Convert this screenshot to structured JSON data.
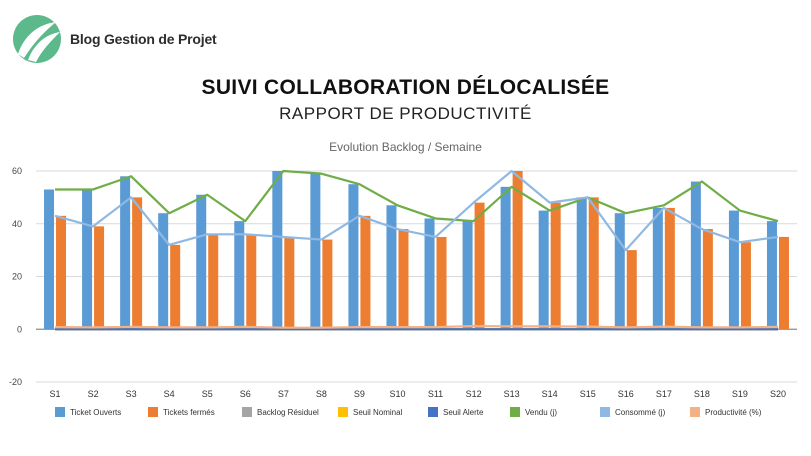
{
  "brand": {
    "name": "Blog Gestion de Projet",
    "color": "#5cb98c"
  },
  "header": {
    "title": "SUIVI COLLABORATION DÉLOCALISÉE",
    "subtitle": "RAPPORT DE PRODUCTIVITÉ"
  },
  "chart_data": {
    "type": "bar",
    "title": "Evolution Backlog / Semaine",
    "categories": [
      "S1",
      "S2",
      "S3",
      "S4",
      "S5",
      "S6",
      "S7",
      "S8",
      "S9",
      "S10",
      "S11",
      "S12",
      "S13",
      "S14",
      "S15",
      "S16",
      "S17",
      "S18",
      "S19",
      "S20"
    ],
    "ylim": [
      -20,
      60
    ],
    "yticks": [
      -20,
      0,
      20,
      40,
      60
    ],
    "grid": true,
    "legend_position": "bottom",
    "series": [
      {
        "name": "Ticket Ouverts",
        "kind": "bar",
        "color": "#5b9bd5",
        "values": [
          53,
          53,
          58,
          44,
          51,
          41,
          60,
          59,
          55,
          47,
          42,
          41,
          54,
          45,
          50,
          44,
          46,
          56,
          45,
          41
        ]
      },
      {
        "name": "Tickets fermés",
        "kind": "bar",
        "color": "#ed7d31",
        "values": [
          43,
          39,
          50,
          32,
          36,
          36,
          35,
          34,
          43,
          38,
          35,
          48,
          60,
          48,
          50,
          30,
          46,
          38,
          33,
          35
        ]
      },
      {
        "name": "Backlog Résiduel",
        "kind": "line",
        "color": "#a5a5a5",
        "values": [
          0,
          0,
          0,
          0,
          0,
          0,
          0,
          0,
          0,
          0,
          0,
          0,
          0,
          0,
          0,
          0,
          0,
          0,
          0,
          0
        ]
      },
      {
        "name": "Seuil Nominal",
        "kind": "line",
        "color": "#ffc000",
        "values": [
          0,
          0,
          0,
          0,
          0,
          0,
          0,
          0,
          0,
          0,
          0,
          0,
          0,
          0,
          0,
          0,
          0,
          0,
          0,
          0
        ]
      },
      {
        "name": "Seuil Alerte",
        "kind": "line",
        "color": "#4472c4",
        "values": [
          0,
          0,
          0,
          0,
          0,
          0,
          0,
          0,
          0,
          0,
          0,
          0,
          0,
          0,
          0,
          0,
          0,
          0,
          0,
          0
        ]
      },
      {
        "name": "Vendu (j)",
        "kind": "line",
        "color": "#70ad47",
        "values": [
          53,
          53,
          58,
          44,
          51,
          41,
          60,
          59,
          55,
          47,
          42,
          41,
          54,
          45,
          50,
          44,
          47,
          56,
          45,
          41
        ]
      },
      {
        "name": "Consommé (j)",
        "kind": "line",
        "color": "#8fb9e3",
        "values": [
          43,
          39,
          50,
          32,
          36,
          36,
          35,
          34,
          43,
          38,
          35,
          48,
          60,
          48,
          50,
          30,
          46,
          38,
          33,
          35
        ]
      },
      {
        "name": "Productivité (%)",
        "kind": "line",
        "color": "#f4b183",
        "values": [
          0.8,
          0.7,
          0.9,
          0.7,
          0.7,
          0.9,
          0.6,
          0.6,
          0.8,
          0.8,
          0.8,
          1.2,
          1.1,
          1.1,
          1.0,
          0.7,
          1.0,
          0.7,
          0.7,
          0.9
        ]
      }
    ]
  }
}
